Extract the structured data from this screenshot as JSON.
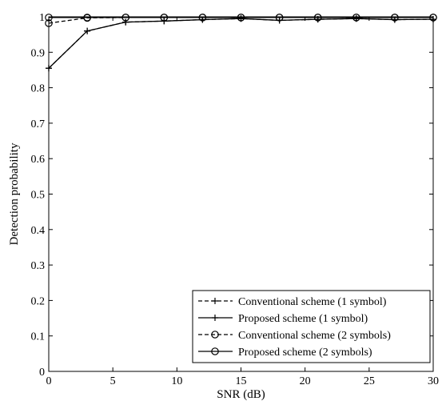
{
  "chart_data": {
    "type": "line",
    "xlabel": "SNR (dB)",
    "ylabel": "Detection probability",
    "xlim": [
      0,
      30
    ],
    "ylim": [
      0,
      1
    ],
    "xticks": [
      0,
      5,
      10,
      15,
      20,
      25,
      30
    ],
    "yticks": [
      0,
      0.1,
      0.2,
      0.3,
      0.4,
      0.5,
      0.6,
      0.7,
      0.8,
      0.9,
      1
    ],
    "grid": false,
    "legend_position": "bottom-right",
    "series": [
      {
        "name": "Conventional scheme (1 symbol)",
        "line_style": "dashed",
        "marker": "plus",
        "x": [
          0,
          3,
          6,
          9,
          12,
          15,
          18,
          21,
          24,
          27,
          30
        ],
        "y": [
          0.855,
          0.96,
          0.985,
          0.988,
          0.992,
          0.995,
          0.99,
          0.993,
          0.995,
          0.992,
          0.993
        ]
      },
      {
        "name": "Proposed scheme (1 symbol)",
        "line_style": "solid",
        "marker": "plus",
        "x": [
          0,
          3,
          6,
          9,
          12,
          15,
          18,
          21,
          24,
          27,
          30
        ],
        "y": [
          0.855,
          0.96,
          0.985,
          0.988,
          0.992,
          0.995,
          0.99,
          0.993,
          0.995,
          0.992,
          0.993
        ]
      },
      {
        "name": "Conventional scheme (2 symbols)",
        "line_style": "dashed",
        "marker": "circle",
        "x": [
          0,
          3,
          6,
          9,
          12,
          15,
          18,
          21,
          24,
          27,
          30
        ],
        "y": [
          0.982,
          0.997,
          0.998,
          0.998,
          0.998,
          0.998,
          0.998,
          0.998,
          0.998,
          0.998,
          0.998
        ]
      },
      {
        "name": "Proposed scheme (2 symbols)",
        "line_style": "solid",
        "marker": "circle",
        "x": [
          0,
          3,
          6,
          9,
          12,
          15,
          18,
          21,
          24,
          27,
          30
        ],
        "y": [
          0.998,
          0.998,
          0.998,
          0.998,
          0.998,
          0.998,
          0.998,
          0.998,
          0.998,
          0.998,
          0.998
        ]
      }
    ]
  }
}
